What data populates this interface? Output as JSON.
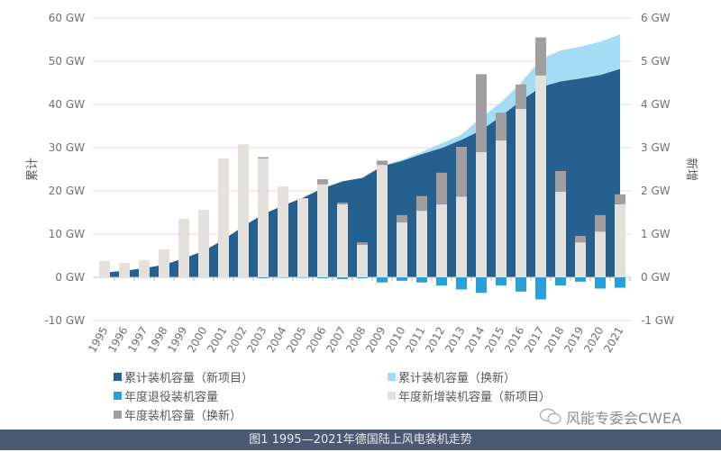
{
  "chart_data": {
    "type": "bar+area",
    "caption": "图1 1995—2021年德国陆上风电装机走势",
    "y_left": {
      "label": "累计",
      "range": [
        -10,
        60
      ],
      "ticks": [
        "-10 GW",
        "0 GW",
        "10 GW",
        "20 GW",
        "30 GW",
        "40 GW",
        "50 GW",
        "60 GW"
      ],
      "values": [
        -10,
        0,
        10,
        20,
        30,
        40,
        50,
        60
      ]
    },
    "y_right": {
      "label": "新增",
      "range": [
        -1,
        6
      ],
      "ticks": [
        "-1 GW",
        "0 GW",
        "1 GW",
        "2 GW",
        "3 GW",
        "4 GW",
        "5 GW",
        "6 GW"
      ],
      "values": [
        -1,
        0,
        1,
        2,
        3,
        4,
        5,
        6
      ]
    },
    "grid": true,
    "legend_position": "bottom",
    "categories": [
      "1995",
      "1996",
      "1997",
      "1998",
      "1999",
      "2000",
      "2001",
      "2002",
      "2003",
      "2004",
      "2005",
      "2006",
      "2007",
      "2008",
      "2009",
      "2010",
      "2011",
      "2012",
      "2013",
      "2014",
      "2015",
      "2016",
      "2017",
      "2018",
      "2019",
      "2020",
      "2021"
    ],
    "series": [
      {
        "name": "累计装机容量（新项目）",
        "kind": "area",
        "axis": "left",
        "color": "#26608f",
        "values": [
          1.1,
          1.5,
          2.1,
          2.9,
          4.4,
          6.1,
          8.7,
          11.8,
          14.6,
          16.6,
          18.4,
          20.6,
          22.2,
          23.0,
          25.7,
          26.9,
          28.5,
          29.9,
          31.8,
          34.0,
          37.3,
          40.8,
          44.0,
          45.3,
          46.0,
          46.8,
          48.2
        ]
      },
      {
        "name": "累计装机容量（换新）",
        "kind": "area-stacked",
        "axis": "left",
        "color": "#a2dcf5",
        "values": [
          0,
          0,
          0,
          0,
          0,
          0,
          0,
          0,
          0,
          0,
          0,
          0,
          0,
          0,
          0.1,
          0.3,
          0.5,
          1.1,
          1.2,
          3.0,
          3.2,
          4.2,
          6.5,
          7.2,
          7.4,
          7.7,
          8.0
        ]
      },
      {
        "name": "年度退役装机容量",
        "kind": "bar",
        "axis": "right",
        "color": "#2b9fd8",
        "values": [
          0,
          0,
          0,
          0,
          0,
          0,
          0,
          0,
          -0.02,
          -0.01,
          -0.01,
          -0.02,
          -0.04,
          -0.02,
          -0.12,
          -0.08,
          -0.12,
          -0.19,
          -0.28,
          -0.36,
          -0.19,
          -0.33,
          -0.51,
          -0.19,
          -0.1,
          -0.26,
          -0.24
        ]
      },
      {
        "name": "年度新增装机容量（新项目）",
        "kind": "bar",
        "axis": "right",
        "color": "#e4e0dc",
        "values": [
          0.38,
          0.33,
          0.4,
          0.65,
          1.35,
          1.56,
          2.75,
          3.08,
          2.75,
          2.1,
          1.83,
          2.15,
          1.69,
          0.75,
          2.6,
          1.27,
          1.54,
          1.69,
          1.87,
          2.9,
          3.17,
          3.9,
          4.67,
          1.98,
          0.81,
          1.06,
          1.69
        ]
      },
      {
        "name": "年度装机容量（换新）",
        "kind": "bar-stacked",
        "axis": "right",
        "color": "#a09e9e",
        "values": [
          0,
          0,
          0,
          0,
          0,
          0,
          0,
          0,
          0.03,
          0,
          0,
          0.12,
          0.04,
          0.06,
          0.1,
          0.17,
          0.34,
          0.73,
          1.15,
          1.8,
          0.64,
          0.56,
          0.88,
          0.48,
          0.15,
          0.38,
          0.23
        ]
      }
    ]
  },
  "watermark": "风能专委会CWEA"
}
